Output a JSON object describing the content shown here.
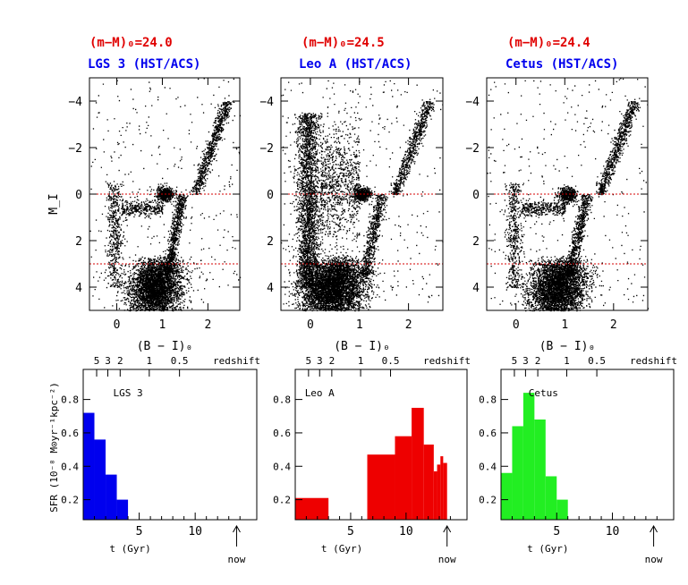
{
  "chart_data": [
    {
      "type": "scatter",
      "panel": "cmd",
      "distance_label": "(m−M)₀=24.0",
      "galaxy_label": "LGS 3 (HST/ACS)",
      "xlabel": "(B − I)₀",
      "ylabel": "M_I",
      "xlim": [
        -0.6,
        2.7
      ],
      "ylim": [
        5.0,
        -5.0
      ],
      "xticks": [
        0,
        1,
        2
      ],
      "yticks": [
        -4,
        -2,
        0,
        2,
        4
      ],
      "ref_lines_y": [
        0.0,
        3.0
      ],
      "features": [
        "main sequence",
        "red giant branch",
        "red clump",
        "horizontal branch"
      ],
      "point_color": "#000000",
      "ref_line_color": "#d40000"
    },
    {
      "type": "scatter",
      "panel": "cmd",
      "distance_label": "(m−M)₀=24.5",
      "galaxy_label": "Leo A (HST/ACS)",
      "xlabel": "(B − I)₀",
      "ylabel": "",
      "xlim": [
        -0.6,
        2.7
      ],
      "ylim": [
        5.0,
        -5.0
      ],
      "xticks": [
        0,
        1,
        2
      ],
      "yticks": [
        -4,
        -2,
        0,
        2,
        4
      ],
      "ref_lines_y": [
        0.0,
        3.0
      ],
      "features": [
        "main sequence",
        "red giant branch",
        "blue loop",
        "red clump"
      ],
      "point_color": "#000000",
      "ref_line_color": "#d40000"
    },
    {
      "type": "scatter",
      "panel": "cmd",
      "distance_label": "(m−M)₀=24.4",
      "galaxy_label": "Cetus (HST/ACS)",
      "xlabel": "(B − I)₀",
      "ylabel": "",
      "xlim": [
        -0.6,
        2.7
      ],
      "ylim": [
        5.0,
        -5.0
      ],
      "xticks": [
        0,
        1,
        2
      ],
      "yticks": [
        -4,
        -2,
        0,
        2,
        4
      ],
      "ref_lines_y": [
        0.0,
        3.0
      ],
      "features": [
        "main sequence",
        "red giant branch",
        "red clump",
        "horizontal branch"
      ],
      "point_color": "#000000",
      "ref_line_color": "#d40000"
    },
    {
      "type": "bar",
      "panel": "sfh",
      "title": "LGS 3",
      "color": "#0000ee",
      "xlabel": "t (Gyr)",
      "ylabel": "SFR (10⁻⁸ M⊙yr⁻¹kpc⁻²)",
      "top_axis_label": "redshift",
      "top_ticks": [
        "5",
        "3",
        "2",
        "1",
        "0.5"
      ],
      "top_tick_times": [
        1.2,
        2.2,
        3.3,
        5.9,
        8.6
      ],
      "now_label": "now",
      "now_time": 13.7,
      "xlim": [
        0,
        15.5
      ],
      "ylim": [
        0.08,
        0.98
      ],
      "xticks": [
        5,
        10
      ],
      "yticks": [
        0.2,
        0.4,
        0.6,
        0.8
      ],
      "bins": [
        {
          "t0": 0,
          "t1": 1,
          "sfr": 0.72
        },
        {
          "t0": 1,
          "t1": 2,
          "sfr": 0.56
        },
        {
          "t0": 2,
          "t1": 3,
          "sfr": 0.35
        },
        {
          "t0": 3,
          "t1": 4,
          "sfr": 0.2
        },
        {
          "t0": 4,
          "t1": 5,
          "sfr": 0.08
        },
        {
          "t0": 5,
          "t1": 6,
          "sfr": 0.055
        },
        {
          "t0": 6,
          "t1": 7,
          "sfr": 0.055
        },
        {
          "t0": 7,
          "t1": 8,
          "sfr": 0.065
        },
        {
          "t0": 11,
          "t1": 12,
          "sfr": 0.065
        }
      ]
    },
    {
      "type": "bar",
      "panel": "sfh",
      "title": "Leo A",
      "color": "#ee0000",
      "xlabel": "t (Gyr)",
      "ylabel": "",
      "top_axis_label": "redshift",
      "top_ticks": [
        "5",
        "3",
        "2",
        "1",
        "0.5"
      ],
      "top_tick_times": [
        1.2,
        2.2,
        3.3,
        5.9,
        8.6
      ],
      "now_label": "now",
      "now_time": 13.7,
      "xlim": [
        0,
        15.5
      ],
      "ylim": [
        0.08,
        0.98
      ],
      "xticks": [
        5,
        10
      ],
      "yticks": [
        0.2,
        0.4,
        0.6,
        0.8
      ],
      "bins": [
        {
          "t0": 0,
          "t1": 3,
          "sfr": 0.21
        },
        {
          "t0": 6.5,
          "t1": 9,
          "sfr": 0.47
        },
        {
          "t0": 9,
          "t1": 10.5,
          "sfr": 0.58
        },
        {
          "t0": 10.5,
          "t1": 11.6,
          "sfr": 0.75
        },
        {
          "t0": 11.6,
          "t1": 12.5,
          "sfr": 0.53
        },
        {
          "t0": 12.5,
          "t1": 12.8,
          "sfr": 0.37
        },
        {
          "t0": 12.8,
          "t1": 13.1,
          "sfr": 0.41
        },
        {
          "t0": 13.1,
          "t1": 13.35,
          "sfr": 0.46
        },
        {
          "t0": 13.35,
          "t1": 13.7,
          "sfr": 0.42
        }
      ]
    },
    {
      "type": "bar",
      "panel": "sfh",
      "title": "Cetus",
      "color": "#22ee22",
      "xlabel": "t (Gyr)",
      "ylabel": "",
      "top_axis_label": "redshift",
      "top_ticks": [
        "5",
        "3",
        "2",
        "1",
        "0.5"
      ],
      "top_tick_times": [
        1.2,
        2.2,
        3.3,
        5.9,
        8.6
      ],
      "now_label": "now",
      "now_time": 13.7,
      "xlim": [
        0,
        15.5
      ],
      "ylim": [
        0.08,
        0.98
      ],
      "xticks": [
        5,
        10
      ],
      "yticks": [
        0.2,
        0.4,
        0.6,
        0.8
      ],
      "bins": [
        {
          "t0": 0,
          "t1": 1,
          "sfr": 0.36
        },
        {
          "t0": 1,
          "t1": 2,
          "sfr": 0.64
        },
        {
          "t0": 2,
          "t1": 3,
          "sfr": 0.84
        },
        {
          "t0": 3,
          "t1": 4,
          "sfr": 0.68
        },
        {
          "t0": 4,
          "t1": 5,
          "sfr": 0.34
        },
        {
          "t0": 5,
          "t1": 6,
          "sfr": 0.2
        }
      ]
    }
  ]
}
